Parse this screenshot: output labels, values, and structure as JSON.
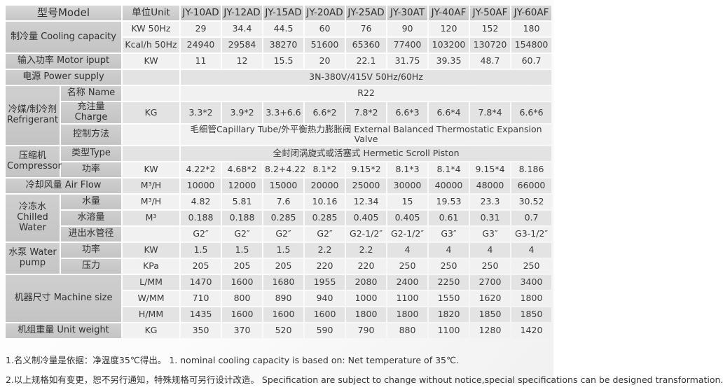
{
  "table": {
    "header": {
      "model_label": "型号Model",
      "unit_label": "单位Unit",
      "models": [
        "JY-10AD",
        "JY-12AD",
        "JY-15AD",
        "JY-20AD",
        "JY-25AD",
        "JY-30AT",
        "JY-40AF",
        "JY-50AF",
        "JY-60AF"
      ]
    },
    "rows": [
      {
        "group": {
          "text": "制冷量 Cooling capacity",
          "rowspan": 2,
          "colspan": 2
        },
        "unit": "KW 50Hz",
        "values": [
          "29",
          "34.4",
          "44.5",
          "60",
          "76",
          "90",
          "120",
          "152",
          "180"
        ]
      },
      {
        "unit": "Kcal/h 50Hz",
        "values": [
          "24940",
          "29584",
          "38270",
          "51600",
          "65360",
          "77400",
          "103200",
          "130720",
          "154800"
        ]
      },
      {
        "group": {
          "text": "输入功率 Motor ipupt",
          "colspan": 2
        },
        "unit": "KW",
        "values": [
          "11",
          "12",
          "15.5",
          "20",
          "22.1",
          "31.75",
          "39.35",
          "48.7",
          "60.7"
        ]
      },
      {
        "group": {
          "text": "电源 Power supply",
          "colspan": 2
        },
        "unit": "",
        "merged": "3N-380V/415V 50Hz/60Hz"
      },
      {
        "group": {
          "text": "冷媒/制冷剂 Refrigerant",
          "rowspan": 3
        },
        "sublabel": "名称 Name",
        "unit": "",
        "merged": "R22"
      },
      {
        "sublabel": "充注量 Charge",
        "unit": "KG",
        "values": [
          "3.3*2",
          "3.9*2",
          "3.3+6.6",
          "6.6*2",
          "7.8*2",
          "6.6*3",
          "6.6*4",
          "7.8*4",
          "6.6*6"
        ]
      },
      {
        "sublabel": "控制方法",
        "unit": "",
        "merged": "毛细管Capillary Tube/外平衡热力膨胀阀 External Balanced Thermostatic Expansion Valve"
      },
      {
        "group": {
          "text": "压缩机 Compressor",
          "rowspan": 2
        },
        "sublabel": "类型Type",
        "unit": "",
        "merged": "全封闭涡旋式或活塞式 Hermetic Scroll Piston"
      },
      {
        "sublabel": "功率",
        "unit": "KW",
        "values": [
          "4.22*2",
          "4.68*2",
          "8.2+4.22",
          "8.1*2",
          "9.15*2",
          "8.1*3",
          "8.1*4",
          "9.15*4",
          "8.186"
        ]
      },
      {
        "group": {
          "text": "冷却风量 Air Flow",
          "colspan": 2
        },
        "unit": "M³/H",
        "values": [
          "10000",
          "12000",
          "15000",
          "20000",
          "25000",
          "30000",
          "40000",
          "48000",
          "66000"
        ]
      },
      {
        "group": {
          "text": "冷冻水 Chilled Water",
          "rowspan": 3
        },
        "sublabel": "水量",
        "unit": "M³/H",
        "values": [
          "4.82",
          "5.81",
          "7.6",
          "10.16",
          "12.34",
          "15",
          "19.53",
          "23.3",
          "30.52"
        ]
      },
      {
        "sublabel": "水溶量",
        "unit": "M³",
        "values": [
          "0.188",
          "0.188",
          "0.285",
          "0.285",
          "0.405",
          "0.405",
          "0.61",
          "0.31",
          "0.7"
        ]
      },
      {
        "sublabel": "进出水管径",
        "unit": "",
        "values": [
          "G2″",
          "G2″",
          "G2″",
          "G2″",
          "G2-1/2″",
          "G2-1/2″",
          "G3″",
          "G3″",
          "G3-1/2″"
        ]
      },
      {
        "group": {
          "text": "水泵 Water pump",
          "rowspan": 2
        },
        "sublabel": "功率",
        "unit": "KW",
        "values": [
          "1.5",
          "1.5",
          "1.5",
          "2.2",
          "2.2",
          "4",
          "4",
          "4",
          "4"
        ]
      },
      {
        "sublabel": "压力",
        "unit": "KPa",
        "values": [
          "205",
          "205",
          "205",
          "220",
          "220",
          "250",
          "250",
          "250",
          "250"
        ]
      },
      {
        "group": {
          "text": "机器尺寸 Machine size",
          "rowspan": 3,
          "colspan": 2
        },
        "unit": "L/MM",
        "values": [
          "1470",
          "1600",
          "1680",
          "1955",
          "2080",
          "2400",
          "2250",
          "2700",
          "3400"
        ]
      },
      {
        "unit": "W/MM",
        "values": [
          "710",
          "800",
          "890",
          "940",
          "1000",
          "1100",
          "1550",
          "1620",
          "1800"
        ]
      },
      {
        "unit": "H/MM",
        "values": [
          "1435",
          "1600",
          "1600",
          "1600",
          "1800",
          "1800",
          "1820",
          "1850",
          "1850"
        ]
      },
      {
        "group": {
          "text": "机组重量 Unit weight",
          "colspan": 2
        },
        "unit": "KG",
        "values": [
          "350",
          "370",
          "520",
          "590",
          "790",
          "880",
          "1100",
          "1280",
          "1420"
        ]
      }
    ]
  },
  "footnotes": [
    "1.名义制冷量是依据：净温度35℃得出。 1. nominal cooling capacity is based on: Net temperature of 35℃.",
    "2.以上规格如有变更，恕不另行通知，特殊规格可另行设计改造。  Specification are subject to change without notice,special specifications can be designed transformation."
  ]
}
